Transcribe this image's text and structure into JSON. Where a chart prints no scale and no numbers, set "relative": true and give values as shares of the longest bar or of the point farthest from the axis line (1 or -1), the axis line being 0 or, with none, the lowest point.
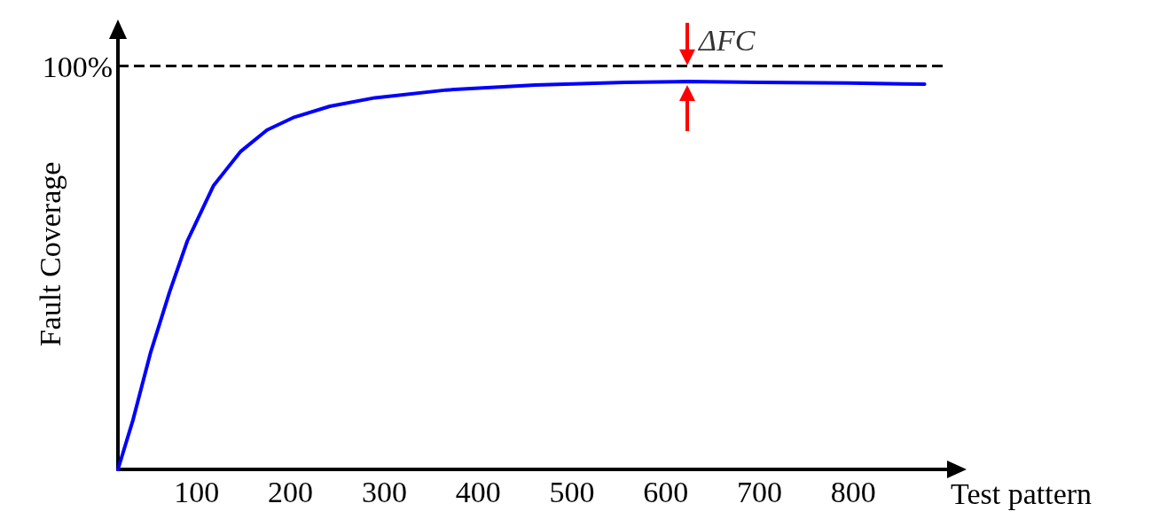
{
  "chart_data": {
    "type": "line",
    "relative": true,
    "xlabel": "Test pattern",
    "ylabel": "Fault Coverage",
    "x": [
      16,
      32,
      51,
      71,
      90,
      118,
      147,
      175,
      204,
      242,
      290,
      366,
      461,
      557,
      623,
      700,
      795,
      876
    ],
    "series": [
      {
        "color": "#0000ff",
        "values": [
          0,
          0.127,
          0.303,
          0.457,
          0.589,
          0.732,
          0.82,
          0.875,
          0.908,
          0.936,
          0.958,
          0.978,
          0.991,
          0.998,
          1,
          0.998,
          0.996,
          0.993
        ]
      }
    ],
    "xlim": [
      16,
      900
    ],
    "xticks": [
      100,
      200,
      300,
      400,
      500,
      600,
      700,
      800
    ],
    "grid": false,
    "marker": "none",
    "line_style": "solid",
    "ref_lines": [
      {
        "axis": "y",
        "value": 1.037,
        "color": "#000000",
        "line_style": "dashed"
      }
    ],
    "annotations": [
      "100%",
      {
        "text": "ΔFC",
        "x": 623,
        "y": 1.037
      }
    ]
  }
}
